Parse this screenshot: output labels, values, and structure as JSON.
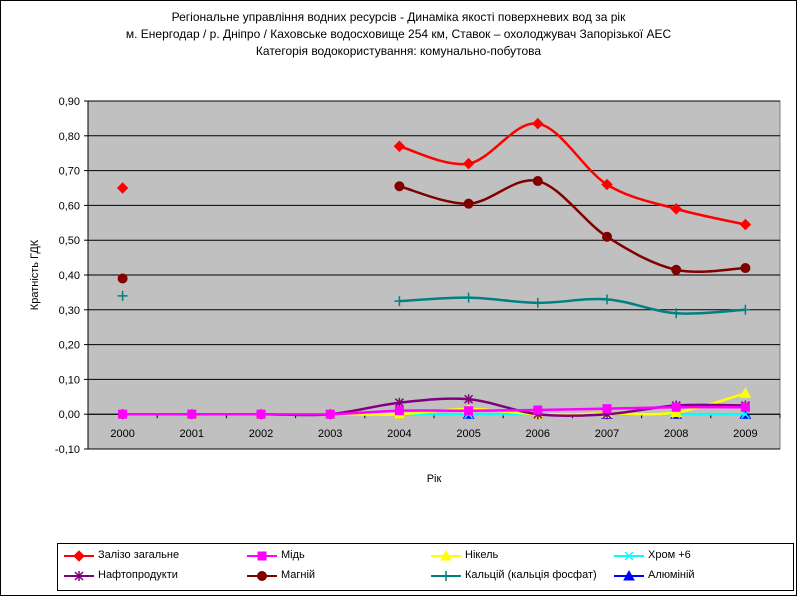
{
  "titles": {
    "line1": "Регіональне управління водних ресурсів - Динаміка якості поверхневих вод за рік",
    "line2": "м. Енергодар / р. Дніпро / Каховське водосховище 254 км, Ставок – охолоджувач Запорізької АЕС",
    "line3": "Категорія водокористування: комунально-побутова"
  },
  "chart_data": {
    "type": "line",
    "xlabel": "Рік",
    "ylabel": "Кратність ГДК",
    "categories": [
      "2000",
      "2001",
      "2002",
      "2003",
      "2004",
      "2005",
      "2006",
      "2007",
      "2008",
      "2009"
    ],
    "ylim": [
      -0.1,
      0.9
    ],
    "yticks": [
      "-0,10",
      "0,00",
      "0,10",
      "0,20",
      "0,30",
      "0,40",
      "0,50",
      "0,60",
      "0,70",
      "0,80",
      "0,90"
    ],
    "grid": true,
    "plot_background": "#c0c0c0",
    "legend_position": "bottom",
    "series": [
      {
        "name": "Залізо загальне",
        "color": "#ff0000",
        "marker": "diamond",
        "values": [
          0.65,
          null,
          null,
          null,
          0.77,
          0.72,
          0.835,
          0.66,
          0.59,
          0.545
        ]
      },
      {
        "name": "Мідь",
        "color": "#ff00ff",
        "marker": "square",
        "values": [
          0.0,
          0.0,
          0.0,
          0.0,
          0.01,
          0.01,
          0.012,
          0.016,
          0.02,
          0.02
        ]
      },
      {
        "name": "Нікель",
        "color": "#ffff00",
        "marker": "triangle",
        "values": [
          0.0,
          0.0,
          0.0,
          0.0,
          0.0,
          0.015,
          0.0,
          0.002,
          0.005,
          0.06
        ]
      },
      {
        "name": "Хром +6",
        "color": "#00ffff",
        "marker": "x",
        "values": [
          0.0,
          0.0,
          0.0,
          0.0,
          0.0,
          0.0,
          0.0,
          0.0,
          0.0,
          0.0
        ]
      },
      {
        "name": "Нафтопродукти",
        "color": "#800080",
        "marker": "star",
        "values": [
          0.0,
          0.0,
          0.0,
          0.0,
          0.033,
          0.043,
          0.0,
          0.0,
          0.025,
          0.025
        ]
      },
      {
        "name": "Магній",
        "color": "#800000",
        "marker": "circle",
        "values": [
          0.39,
          null,
          null,
          null,
          0.655,
          0.605,
          0.67,
          0.51,
          0.415,
          0.42
        ]
      },
      {
        "name": "Кальцій (кальція фосфат)",
        "color": "#008080",
        "marker": "plus",
        "values": [
          0.34,
          null,
          null,
          null,
          0.325,
          0.335,
          0.32,
          0.33,
          0.29,
          0.3
        ]
      },
      {
        "name": "Алюміній",
        "color": "#0000ff",
        "marker": "triangle",
        "values": [
          0.0,
          0.0,
          0.0,
          0.0,
          0.0,
          0.0,
          0.0,
          0.0,
          0.0,
          0.0
        ]
      }
    ]
  }
}
